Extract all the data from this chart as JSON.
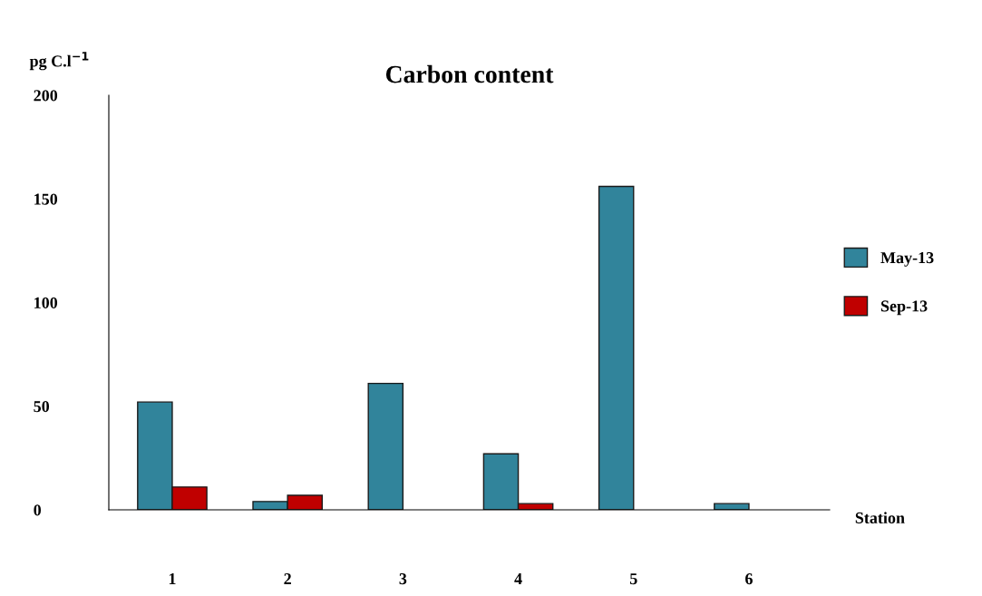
{
  "chart_data": {
    "type": "bar",
    "title": "Carbon content",
    "xlabel": "Station",
    "ylabel": "pg C.l$^{−1}$",
    "categories": [
      "1",
      "2",
      "3",
      "4",
      "5",
      "6"
    ],
    "series": [
      {
        "name": "May-13",
        "color": "#31849b",
        "values": [
          52,
          4,
          61,
          27,
          156,
          3
        ]
      },
      {
        "name": "Sep-13",
        "color": "#c00000",
        "values": [
          11,
          7,
          null,
          3,
          null,
          null
        ]
      }
    ],
    "ylim": [
      0,
      200
    ],
    "yticks": [
      0,
      50,
      100,
      150,
      200
    ],
    "grid": false,
    "legend": "right"
  }
}
